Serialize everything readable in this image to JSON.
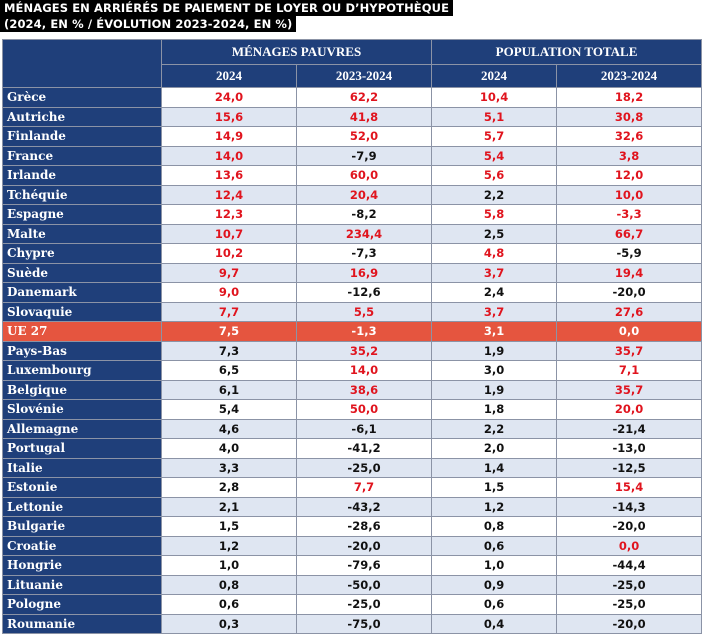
{
  "title": {
    "line1": "MÉNAGES EN ARRIÉRÉS DE PAIEMENT DE LOYER OU D’HYPOTHÈQUE",
    "line2": "(2024, EN % / ÉVOLUTION 2023-2024, EN %)"
  },
  "headers": {
    "group1": "MÉNAGES PAUVRES",
    "group2": "POPULATION TOTALE",
    "sub": [
      "2024",
      "2023-2024",
      "2024",
      "2023-2024"
    ]
  },
  "colors": {
    "header_bg": "#1f3f7a",
    "highlight": "#e5553f",
    "red_text": "#e0141e",
    "band": "#dfe6f2"
  },
  "rows": [
    {
      "country": "Grèce",
      "v": [
        "24,0",
        "62,2",
        "10,4",
        "18,2"
      ],
      "red": [
        true,
        true,
        true,
        true
      ]
    },
    {
      "country": "Autriche",
      "v": [
        "15,6",
        "41,8",
        "5,1",
        "30,8"
      ],
      "red": [
        true,
        true,
        true,
        true
      ]
    },
    {
      "country": "Finlande",
      "v": [
        "14,9",
        "52,0",
        "5,7",
        "32,6"
      ],
      "red": [
        true,
        true,
        true,
        true
      ]
    },
    {
      "country": "France",
      "v": [
        "14,0",
        "-7,9",
        "5,4",
        "3,8"
      ],
      "red": [
        true,
        false,
        true,
        true
      ]
    },
    {
      "country": "Irlande",
      "v": [
        "13,6",
        "60,0",
        "5,6",
        "12,0"
      ],
      "red": [
        true,
        true,
        true,
        true
      ]
    },
    {
      "country": "Tchéquie",
      "v": [
        "12,4",
        "20,4",
        "2,2",
        "10,0"
      ],
      "red": [
        true,
        true,
        false,
        true
      ]
    },
    {
      "country": "Espagne",
      "v": [
        "12,3",
        "-8,2",
        "5,8",
        "-3,3"
      ],
      "red": [
        true,
        false,
        true,
        true
      ]
    },
    {
      "country": "Malte",
      "v": [
        "10,7",
        "234,4",
        "2,5",
        "66,7"
      ],
      "red": [
        true,
        true,
        false,
        true
      ]
    },
    {
      "country": "Chypre",
      "v": [
        "10,2",
        "-7,3",
        "4,8",
        "-5,9"
      ],
      "red": [
        true,
        false,
        true,
        false
      ]
    },
    {
      "country": "Suède",
      "v": [
        "9,7",
        "16,9",
        "3,7",
        "19,4"
      ],
      "red": [
        true,
        true,
        true,
        true
      ]
    },
    {
      "country": "Danemark",
      "v": [
        "9,0",
        "-12,6",
        "2,4",
        "-20,0"
      ],
      "red": [
        true,
        false,
        false,
        false
      ]
    },
    {
      "country": "Slovaquie",
      "v": [
        "7,7",
        "5,5",
        "3,7",
        "27,6"
      ],
      "red": [
        true,
        true,
        true,
        true
      ]
    },
    {
      "country": "UE 27",
      "v": [
        "7,5",
        "-1,3",
        "3,1",
        "0,0"
      ],
      "red": [
        false,
        false,
        false,
        false
      ],
      "highlight": true
    },
    {
      "country": "Pays-Bas",
      "v": [
        "7,3",
        "35,2",
        "1,9",
        "35,7"
      ],
      "red": [
        false,
        true,
        false,
        true
      ]
    },
    {
      "country": "Luxembourg",
      "v": [
        "6,5",
        "14,0",
        "3,0",
        "7,1"
      ],
      "red": [
        false,
        true,
        false,
        true
      ]
    },
    {
      "country": "Belgique",
      "v": [
        "6,1",
        "38,6",
        "1,9",
        "35,7"
      ],
      "red": [
        false,
        true,
        false,
        true
      ]
    },
    {
      "country": "Slovénie",
      "v": [
        "5,4",
        "50,0",
        "1,8",
        "20,0"
      ],
      "red": [
        false,
        true,
        false,
        true
      ]
    },
    {
      "country": "Allemagne",
      "v": [
        "4,6",
        "-6,1",
        "2,2",
        "-21,4"
      ],
      "red": [
        false,
        false,
        false,
        false
      ]
    },
    {
      "country": "Portugal",
      "v": [
        "4,0",
        "-41,2",
        "2,0",
        "-13,0"
      ],
      "red": [
        false,
        false,
        false,
        false
      ]
    },
    {
      "country": "Italie",
      "v": [
        "3,3",
        "-25,0",
        "1,4",
        "-12,5"
      ],
      "red": [
        false,
        false,
        false,
        false
      ]
    },
    {
      "country": "Estonie",
      "v": [
        "2,8",
        "7,7",
        "1,5",
        "15,4"
      ],
      "red": [
        false,
        true,
        false,
        true
      ]
    },
    {
      "country": "Lettonie",
      "v": [
        "2,1",
        "-43,2",
        "1,2",
        "-14,3"
      ],
      "red": [
        false,
        false,
        false,
        false
      ]
    },
    {
      "country": "Bulgarie",
      "v": [
        "1,5",
        "-28,6",
        "0,8",
        "-20,0"
      ],
      "red": [
        false,
        false,
        false,
        false
      ]
    },
    {
      "country": "Croatie",
      "v": [
        "1,2",
        "-20,0",
        "0,6",
        "0,0"
      ],
      "red": [
        false,
        false,
        false,
        true
      ]
    },
    {
      "country": "Hongrie",
      "v": [
        "1,0",
        "-79,6",
        "1,0",
        "-44,4"
      ],
      "red": [
        false,
        false,
        false,
        false
      ]
    },
    {
      "country": "Lituanie",
      "v": [
        "0,8",
        "-50,0",
        "0,9",
        "-25,0"
      ],
      "red": [
        false,
        false,
        false,
        false
      ]
    },
    {
      "country": "Pologne",
      "v": [
        "0,6",
        "-25,0",
        "0,6",
        "-25,0"
      ],
      "red": [
        false,
        false,
        false,
        false
      ]
    },
    {
      "country": "Roumanie",
      "v": [
        "0,3",
        "-75,0",
        "0,4",
        "-20,0"
      ],
      "red": [
        false,
        false,
        false,
        false
      ]
    }
  ]
}
